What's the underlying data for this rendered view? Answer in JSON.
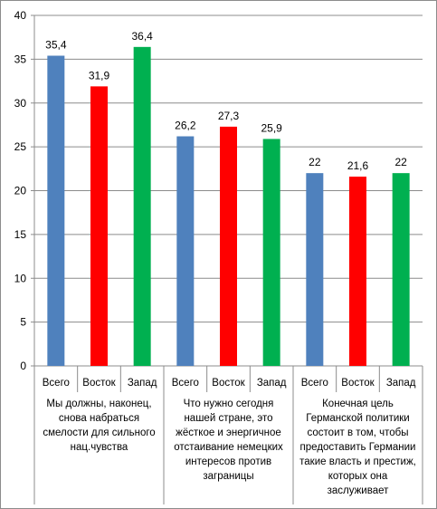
{
  "colors": {
    "Всего": "#4f81bd",
    "Восток": "#ff0000",
    "Запад": "#00b050",
    "grid": "#8c8c8c",
    "axis": "#8c8c8c"
  },
  "chart_data": {
    "type": "bar",
    "title": "",
    "xlabel": "",
    "ylabel": "",
    "ylim": [
      0,
      40
    ],
    "yticks": [
      "0",
      "5",
      "10",
      "15",
      "20",
      "25",
      "30",
      "35",
      "40"
    ],
    "grid": true,
    "legend": "none",
    "subcategories": [
      "Всего",
      "Восток",
      "Запад"
    ],
    "groups": [
      {
        "label": "Мы должны, наконец,\nснова набраться\nсмелости для сильного\nнац.чувства",
        "values": [
          35.4,
          31.9,
          36.4
        ],
        "value_labels": [
          "35,4",
          "31,9",
          "36,4"
        ]
      },
      {
        "label": "Что нужно сегодня\nнашей стране, это\nжёсткое и энергичное\nотстаивание немецких\nинтересов против\nзаграницы",
        "values": [
          26.2,
          27.3,
          25.9
        ],
        "value_labels": [
          "26,2",
          "27,3",
          "25,9"
        ]
      },
      {
        "label": "Конечная цель\nГерманской политики\nсостоит в том, чтобы\nпредоставить Германии\nтакие власть и престиж,\nкоторых она\nзаслуживает",
        "values": [
          22,
          21.6,
          22
        ],
        "value_labels": [
          "22",
          "21,6",
          "22"
        ]
      }
    ]
  }
}
